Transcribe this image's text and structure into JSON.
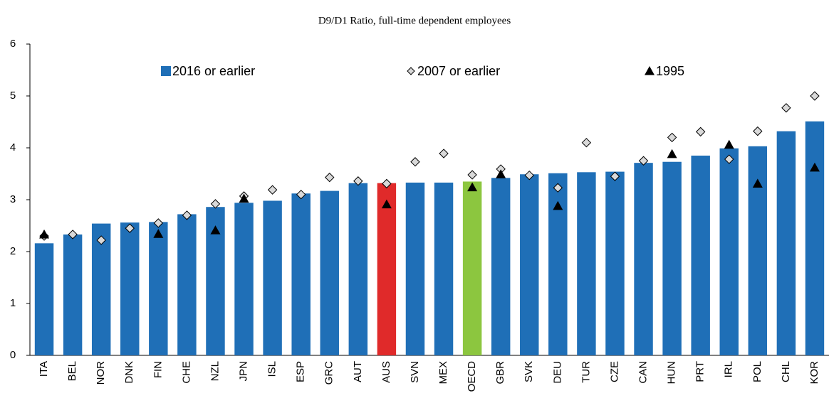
{
  "chart_data": {
    "type": "bar",
    "title": "D9/D1 Ratio, full-time dependent employees",
    "categories": [
      "ITA",
      "BEL",
      "NOR",
      "DNK",
      "FIN",
      "CHE",
      "NZL",
      "JPN",
      "ISL",
      "ESP",
      "GRC",
      "AUT",
      "AUS",
      "SVN",
      "MEX",
      "OECD",
      "GBR",
      "SVK",
      "DEU",
      "TUR",
      "CZE",
      "CAN",
      "HUN",
      "PRT",
      "IRL",
      "POL",
      "CHL",
      "KOR"
    ],
    "series": [
      {
        "name": "2016 or earlier",
        "mark": "bar",
        "color": "#1f6fb7",
        "colors": [
          "#1f6fb7",
          "#1f6fb7",
          "#1f6fb7",
          "#1f6fb7",
          "#1f6fb7",
          "#1f6fb7",
          "#1f6fb7",
          "#1f6fb7",
          "#1f6fb7",
          "#1f6fb7",
          "#1f6fb7",
          "#1f6fb7",
          "#e02a2a",
          "#1f6fb7",
          "#1f6fb7",
          "#8cc63f",
          "#1f6fb7",
          "#1f6fb7",
          "#1f6fb7",
          "#1f6fb7",
          "#1f6fb7",
          "#1f6fb7",
          "#1f6fb7",
          "#1f6fb7",
          "#1f6fb7",
          "#1f6fb7",
          "#1f6fb7",
          "#1f6fb7"
        ],
        "values": [
          2.16,
          2.33,
          2.54,
          2.56,
          2.57,
          2.72,
          2.86,
          2.94,
          2.98,
          3.12,
          3.17,
          3.32,
          3.32,
          3.33,
          3.33,
          3.35,
          3.42,
          3.49,
          3.51,
          3.53,
          3.54,
          3.71,
          3.73,
          3.85,
          3.99,
          4.03,
          4.32,
          4.51
        ]
      },
      {
        "name": "2007 or earlier",
        "mark": "diamond",
        "color": "#d9d9d9",
        "values": [
          2.3,
          2.33,
          2.22,
          2.45,
          2.55,
          2.7,
          2.92,
          3.07,
          3.19,
          3.1,
          3.43,
          3.36,
          3.31,
          3.73,
          3.89,
          3.48,
          3.59,
          3.47,
          3.23,
          4.1,
          3.45,
          3.75,
          4.2,
          4.31,
          3.78,
          4.32,
          4.77,
          5.0
        ]
      },
      {
        "name": "1995",
        "mark": "triangle",
        "color": "#000000",
        "values": [
          2.33,
          null,
          null,
          null,
          2.34,
          null,
          2.41,
          3.02,
          null,
          null,
          null,
          null,
          2.91,
          null,
          null,
          3.24,
          3.49,
          null,
          2.88,
          null,
          null,
          null,
          3.88,
          null,
          4.06,
          3.31,
          null,
          3.62
        ]
      }
    ],
    "ylim": [
      0,
      6
    ],
    "yticks": [
      0,
      1,
      2,
      3,
      4,
      5,
      6
    ],
    "grid": false,
    "legend": "top"
  }
}
